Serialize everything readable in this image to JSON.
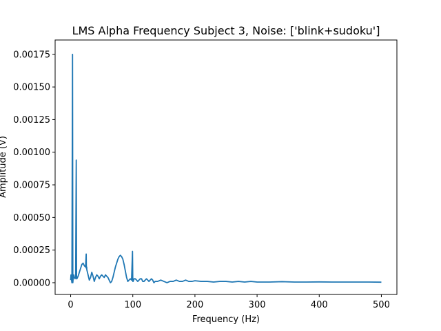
{
  "chart_data": {
    "type": "line",
    "title": "LMS Alpha Frequency Subject 3, Noise: ['blink+sudoku']",
    "xlabel": "Frequency (Hz)",
    "ylabel": "Amplitude (V)",
    "xlim": [
      -25,
      525
    ],
    "ylim": [
      -9e-05,
      0.00186
    ],
    "xticks": [
      0,
      100,
      200,
      300,
      400,
      500
    ],
    "xtick_labels": [
      "0",
      "100",
      "200",
      "300",
      "400",
      "500"
    ],
    "yticks": [
      0,
      0.00025,
      0.0005,
      0.00075,
      0.001,
      0.00125,
      0.0015,
      0.00175
    ],
    "ytick_labels": [
      "0.00000",
      "0.00025",
      "0.00050",
      "0.00075",
      "0.00100",
      "0.00125",
      "0.00150",
      "0.00175"
    ],
    "grid": false,
    "line_color": "#1f77b4",
    "series": [
      {
        "x": [
          0,
          0.5,
          1,
          2,
          3,
          3.5,
          4,
          5,
          6,
          7,
          8,
          9,
          9.5,
          10,
          11,
          12,
          14,
          16,
          18,
          20,
          22,
          24,
          25,
          25.3,
          25.8,
          26,
          28,
          30,
          32,
          34,
          36,
          38,
          40,
          42,
          44,
          46,
          48,
          50,
          52,
          54,
          56,
          58,
          60,
          62,
          64,
          66,
          68,
          70,
          72,
          74,
          76,
          78,
          80,
          82,
          84,
          86,
          88,
          90,
          92,
          94,
          96,
          98,
          99.5,
          100,
          100.5,
          102,
          104,
          106,
          108,
          110,
          112,
          114,
          116,
          118,
          120,
          122,
          124,
          126,
          128,
          130,
          132,
          134,
          136,
          140,
          145,
          150,
          155,
          160,
          165,
          170,
          175,
          180,
          185,
          190,
          195,
          200,
          210,
          220,
          230,
          240,
          250,
          260,
          270,
          280,
          290,
          300,
          320,
          340,
          360,
          380,
          400,
          420,
          440,
          460,
          480,
          500
        ],
        "y": [
          2e-05,
          6e-05,
          4e-05,
          0.0,
          0.00175,
          0.0,
          3e-05,
          6e-05,
          4e-05,
          3e-05,
          4e-05,
          0.00094,
          3e-05,
          3e-05,
          4e-05,
          5e-05,
          8e-05,
          0.00011,
          0.00014,
          0.00015,
          0.00013,
          0.00012,
          0.00022,
          0.00011,
          0.00012,
          0.0001,
          6e-05,
          2e-05,
          4e-05,
          8e-05,
          5e-05,
          1e-05,
          4e-05,
          6e-05,
          5e-05,
          3e-05,
          5e-05,
          6e-05,
          5e-05,
          4e-05,
          6e-05,
          5e-05,
          4e-05,
          2e-05,
          0.0,
          1e-05,
          4e-05,
          8e-05,
          0.00012,
          0.00015,
          0.00018,
          0.0002,
          0.00021,
          0.0002,
          0.00018,
          0.00014,
          9e-05,
          4e-05,
          1e-05,
          2e-05,
          3e-05,
          2e-05,
          0.00024,
          1e-05,
          1e-05,
          3e-05,
          3e-05,
          2e-05,
          1e-05,
          2e-05,
          3e-05,
          3e-05,
          1e-05,
          1e-05,
          2e-05,
          3e-05,
          2e-05,
          1e-05,
          2e-05,
          3e-05,
          2e-05,
          0.0,
          1e-05,
          1e-05,
          2e-05,
          1e-05,
          0.0,
          1e-05,
          1e-05,
          2e-05,
          1e-05,
          1e-05,
          2e-05,
          1e-05,
          1e-05,
          1.5e-05,
          1e-05,
          1e-05,
          5e-06,
          1e-05,
          1e-05,
          5e-06,
          1e-05,
          5e-06,
          1e-05,
          5e-06,
          5e-06,
          8e-06,
          5e-06,
          5e-06,
          6e-06,
          5e-06,
          5e-06,
          5e-06,
          5e-06,
          4e-06
        ]
      }
    ]
  }
}
